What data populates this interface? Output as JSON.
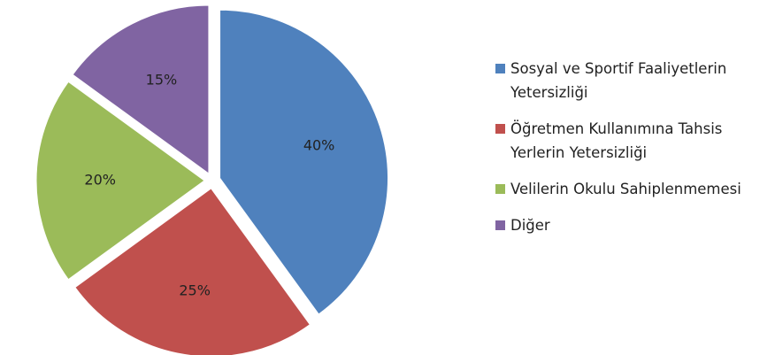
{
  "chart_data": {
    "type": "pie",
    "categories": [
      "Sosyal ve Sportif Faaliyetlerin Yetersizliği",
      "Öğretmen Kullanımına Tahsis Yerlerin Yetersizliği",
      "Velilerin Okulu Sahiplenmemesi",
      "Diğer"
    ],
    "values": [
      40,
      25,
      20,
      15
    ],
    "value_labels": [
      "40%",
      "25%",
      "20%",
      "15%"
    ],
    "colors": [
      "#4f81bd",
      "#c0504d",
      "#9bbb59",
      "#8064a2"
    ],
    "legend": "right"
  }
}
